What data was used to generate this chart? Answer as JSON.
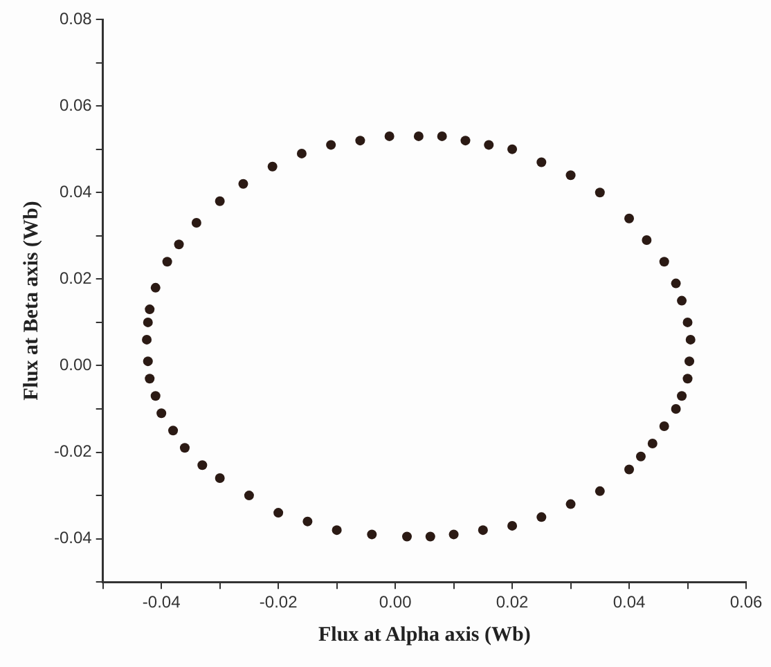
{
  "chart_data": {
    "type": "scatter",
    "xlabel": "Flux at Alpha axis (Wb)",
    "ylabel": "Flux at Beta axis (Wb)",
    "xlim": [
      -0.05,
      0.06
    ],
    "ylim": [
      -0.05,
      0.08
    ],
    "xticks": [
      {
        "value": -0.05,
        "label": null
      },
      {
        "value": -0.04,
        "label": "-0.04"
      },
      {
        "value": -0.03,
        "label": null
      },
      {
        "value": -0.02,
        "label": "-0.02"
      },
      {
        "value": -0.01,
        "label": null
      },
      {
        "value": 0,
        "label": "0.00"
      },
      {
        "value": 0.01,
        "label": null
      },
      {
        "value": 0.02,
        "label": "0.02"
      },
      {
        "value": 0.03,
        "label": null
      },
      {
        "value": 0.04,
        "label": "0.04"
      },
      {
        "value": 0.05,
        "label": null
      },
      {
        "value": 0.06,
        "label": "0.06"
      }
    ],
    "yticks": [
      {
        "value": -0.05,
        "label": null
      },
      {
        "value": -0.04,
        "label": "-0.04"
      },
      {
        "value": -0.03,
        "label": null
      },
      {
        "value": -0.02,
        "label": "-0.02"
      },
      {
        "value": -0.01,
        "label": null
      },
      {
        "value": 0,
        "label": "0.00"
      },
      {
        "value": 0.01,
        "label": null
      },
      {
        "value": 0.02,
        "label": "0.02"
      },
      {
        "value": 0.03,
        "label": null
      },
      {
        "value": 0.04,
        "label": "0.04"
      },
      {
        "value": 0.05,
        "label": null
      },
      {
        "value": 0.06,
        "label": "0.06"
      },
      {
        "value": 0.07,
        "label": null
      },
      {
        "value": 0.08,
        "label": "0.08"
      }
    ],
    "grid": false,
    "legend": false,
    "marker": "circle",
    "series": [
      {
        "color": "#2b1a14",
        "x": [
          -0.0425,
          -0.0423,
          -0.042,
          -0.041,
          -0.039,
          -0.037,
          -0.034,
          -0.03,
          -0.026,
          -0.021,
          -0.016,
          -0.011,
          -0.006,
          -0.001,
          0.004,
          0.008,
          0.012,
          0.016,
          0.02,
          0.025,
          0.03,
          0.035,
          0.04,
          0.043,
          0.046,
          0.048,
          0.049,
          0.05,
          0.0505,
          0.0503,
          0.05,
          0.049,
          0.048,
          0.046,
          0.044,
          0.042,
          0.04,
          0.035,
          0.03,
          0.025,
          0.02,
          0.015,
          0.01,
          0.006,
          0.002,
          -0.004,
          -0.01,
          -0.015,
          -0.02,
          -0.025,
          -0.03,
          -0.033,
          -0.036,
          -0.038,
          -0.04,
          -0.041,
          -0.042,
          -0.0423
        ],
        "values": [
          0.006,
          0.01,
          0.013,
          0.018,
          0.024,
          0.028,
          0.033,
          0.038,
          0.042,
          0.046,
          0.049,
          0.051,
          0.052,
          0.053,
          0.053,
          0.053,
          0.052,
          0.051,
          0.05,
          0.047,
          0.044,
          0.04,
          0.034,
          0.029,
          0.024,
          0.019,
          0.015,
          0.01,
          0.006,
          0.001,
          -0.003,
          -0.007,
          -0.01,
          -0.014,
          -0.018,
          -0.021,
          -0.024,
          -0.029,
          -0.032,
          -0.035,
          -0.037,
          -0.038,
          -0.039,
          -0.0395,
          -0.0395,
          -0.039,
          -0.038,
          -0.036,
          -0.034,
          -0.03,
          -0.026,
          -0.023,
          -0.019,
          -0.015,
          -0.011,
          -0.007,
          -0.003,
          0.001
        ]
      }
    ]
  }
}
